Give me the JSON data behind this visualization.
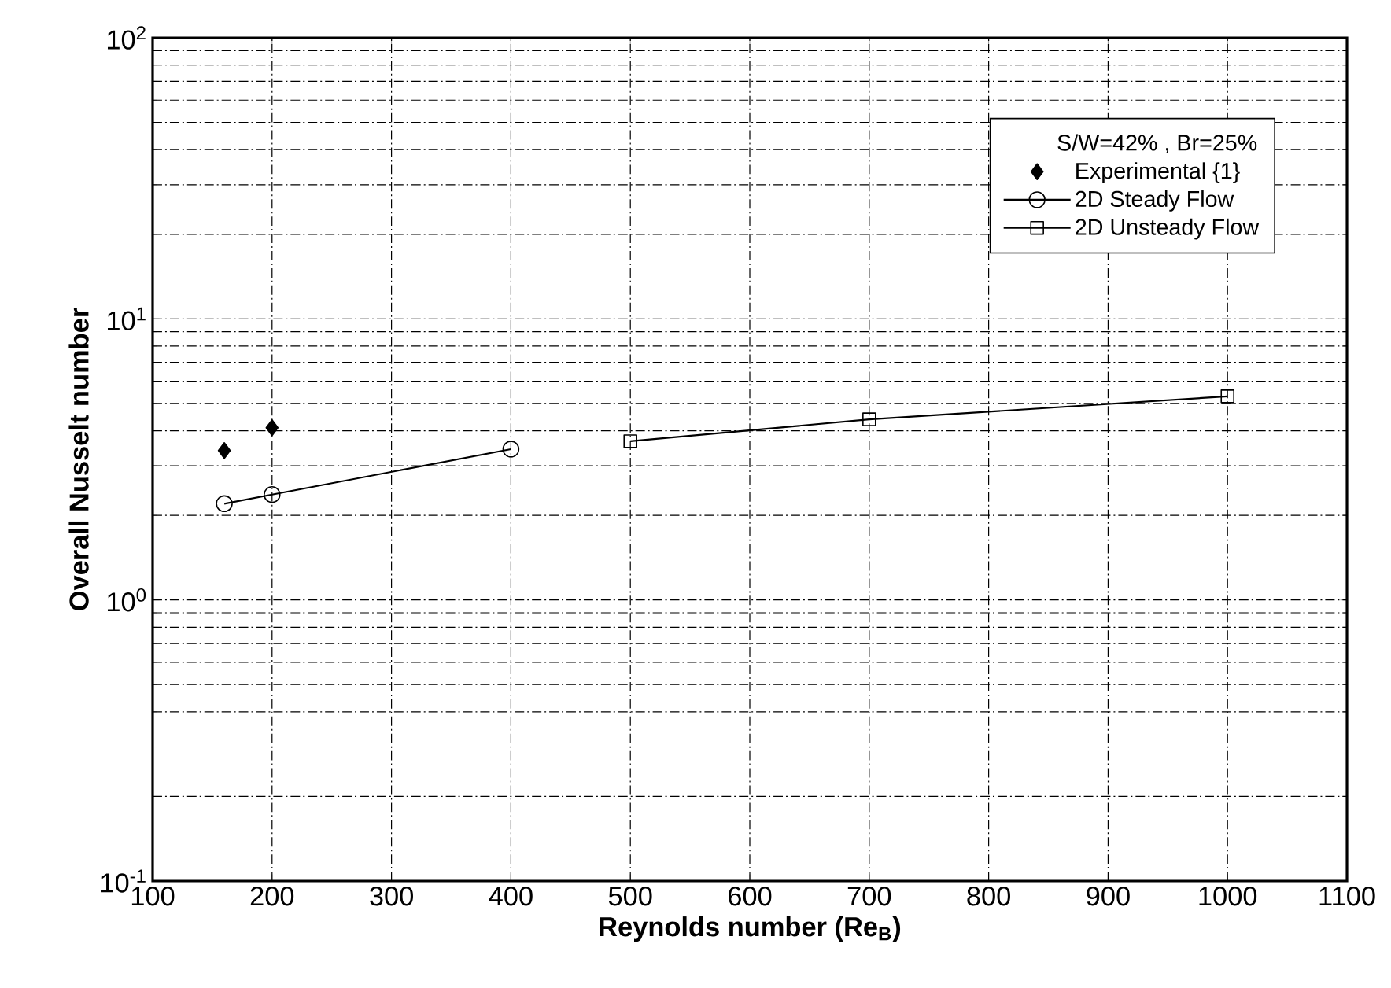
{
  "chart_data": {
    "type": "line",
    "xlabel": "Reynolds number (Re$_{B}$)",
    "ylabel": "Overall Nusselt number",
    "legend_title": "S/W=42% , Br=25%",
    "series": [
      {
        "name": "Experimental {1}",
        "type": "scatter",
        "marker": "diamond",
        "color": "#000000",
        "x": [
          160,
          200
        ],
        "values": [
          3.4,
          4.1
        ]
      },
      {
        "name": "2D Steady Flow",
        "marker": "circle",
        "color": "#000000",
        "x": [
          160,
          200,
          400
        ],
        "values": [
          2.2,
          2.37,
          3.44
        ]
      },
      {
        "name": "2D Unsteady Flow",
        "marker": "square",
        "color": "#000000",
        "x": [
          500,
          700,
          1000
        ],
        "values": [
          3.67,
          4.39,
          5.3
        ]
      }
    ],
    "log": "y",
    "grid": true,
    "legend": "top right",
    "xlim": [
      100,
      1100
    ],
    "xticks": [
      100,
      200,
      300,
      400,
      500,
      600,
      700,
      800,
      900,
      1000,
      1100
    ],
    "ylim": [
      0.1,
      100
    ],
    "yticks": [
      {
        "value": 0.1,
        "label": "10$^{-1}$"
      },
      {
        "value": 1,
        "label": "10$^{0}$"
      },
      {
        "value": 10,
        "label": "10$^{1}$"
      },
      {
        "value": 100,
        "label": "10$^{2}$"
      }
    ]
  }
}
